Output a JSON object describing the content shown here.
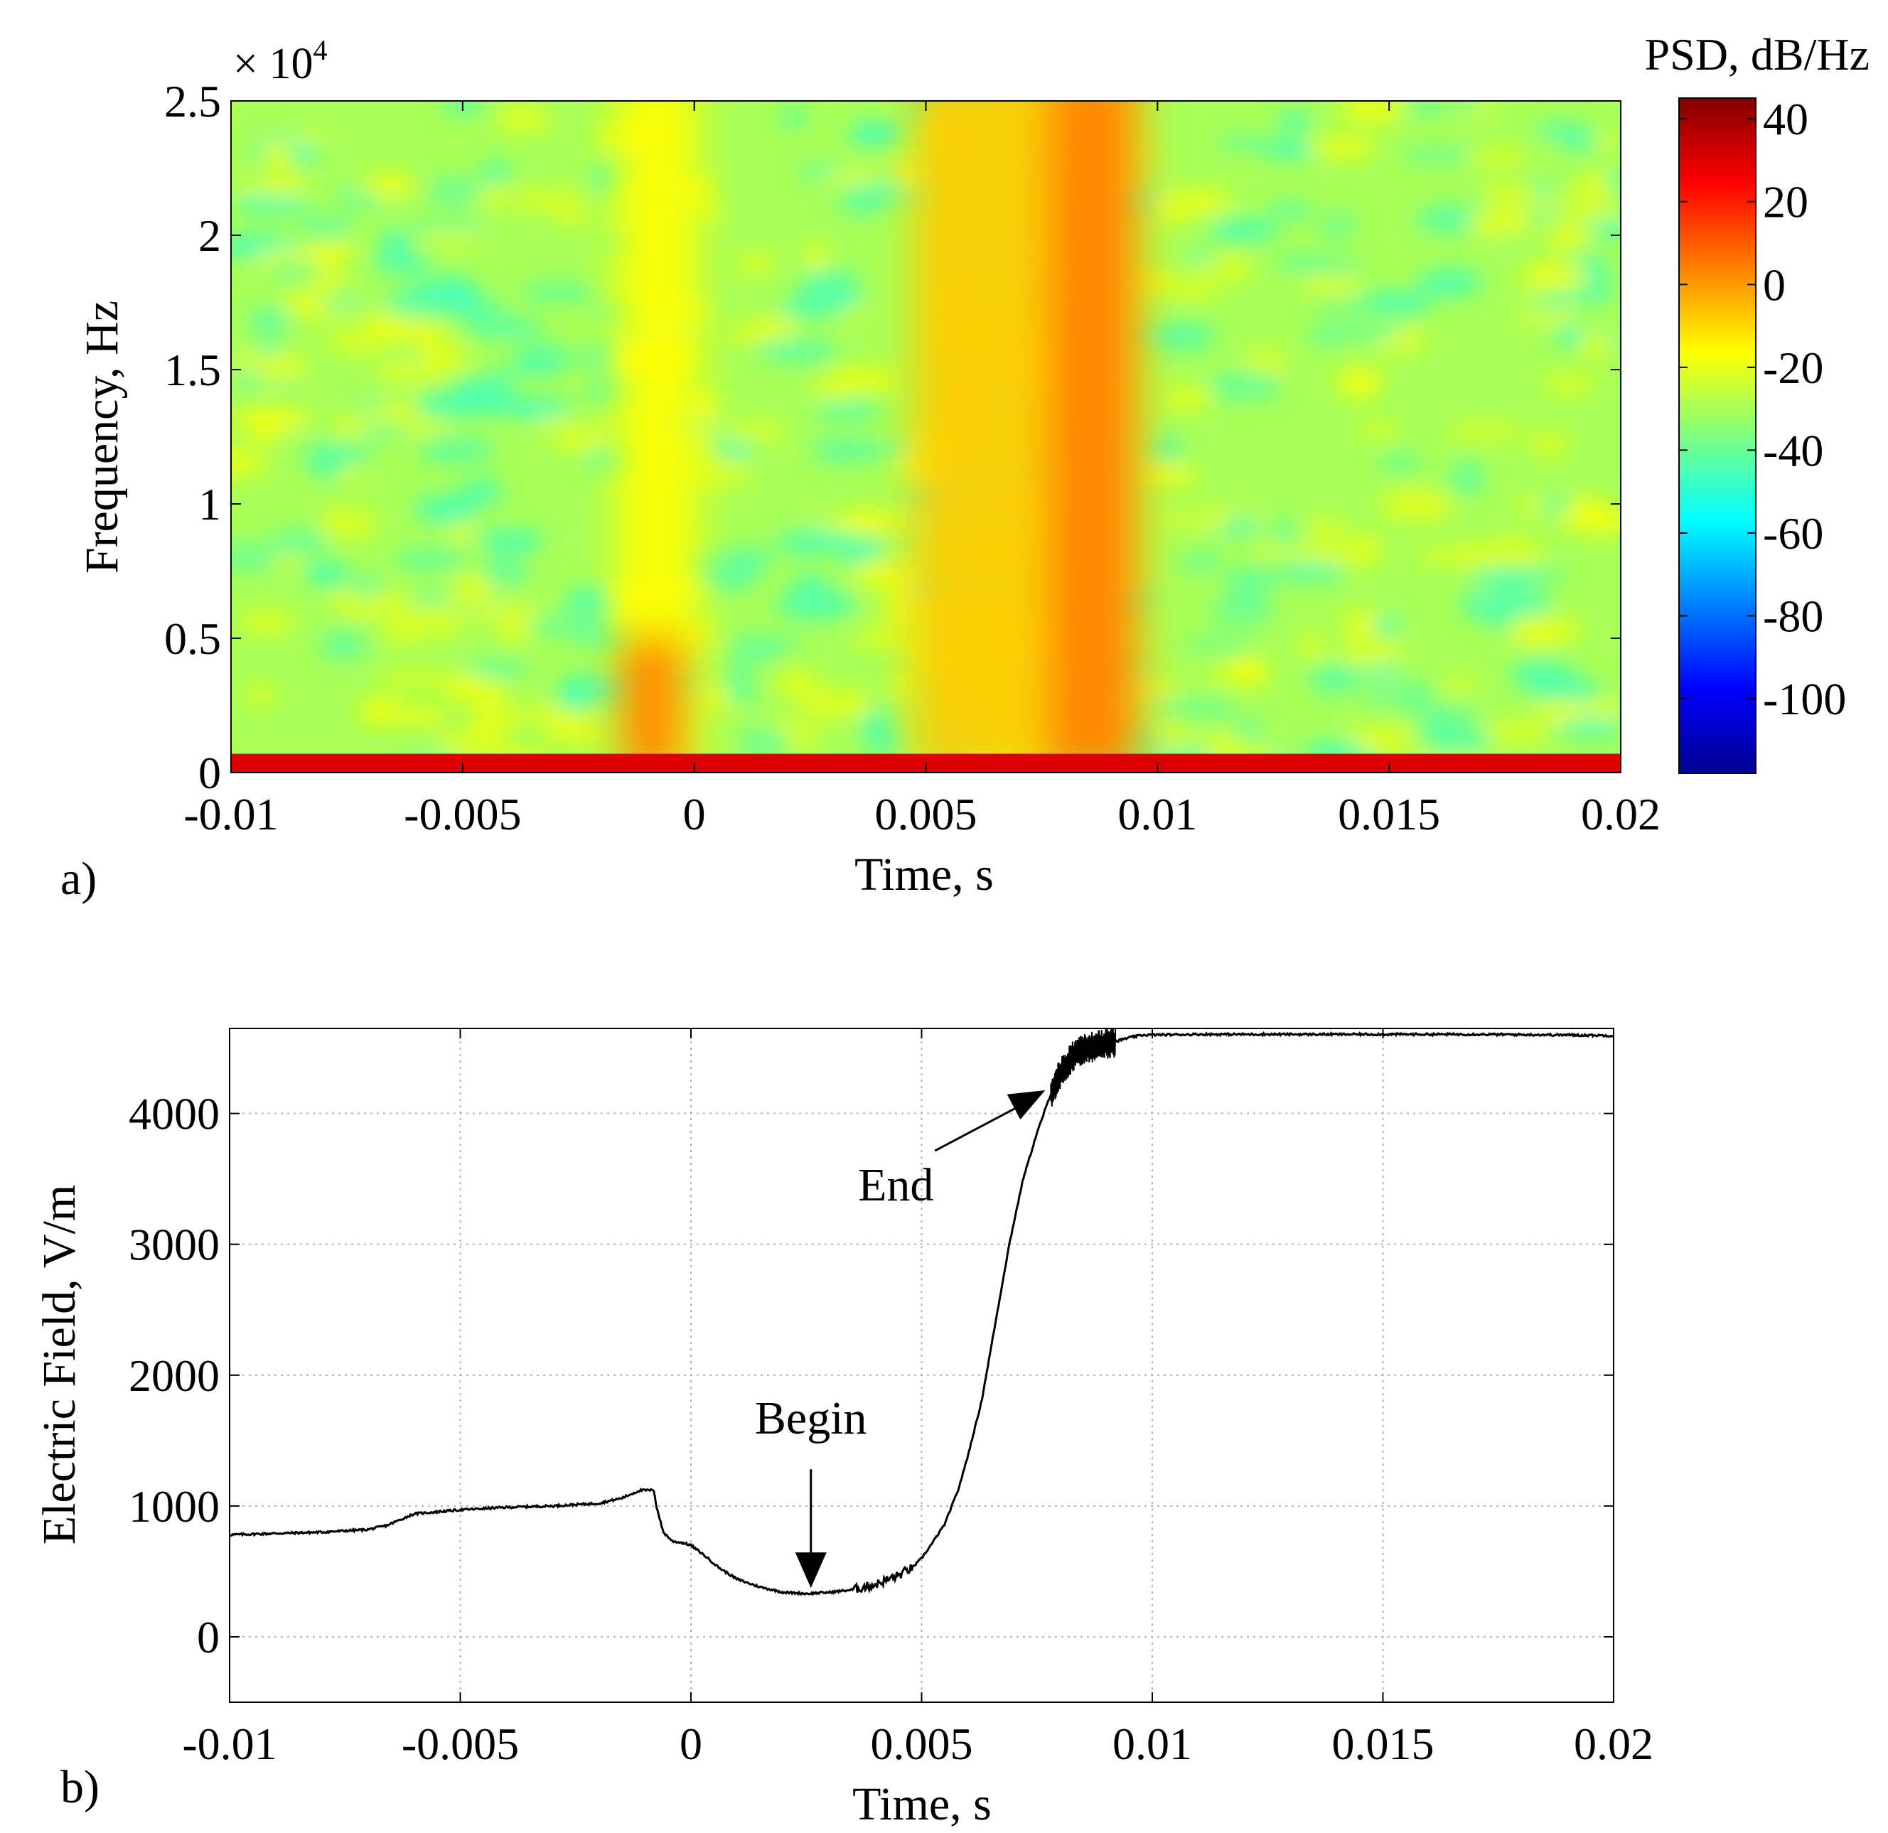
{
  "chart_data": [
    {
      "type": "heatmap",
      "panel_label": "a)",
      "xlabel": "Time, s",
      "ylabel": "Frequency, Hz",
      "y_multiplier": "× 10",
      "y_multiplier_exp": "4",
      "xlim": [
        -0.01,
        0.02
      ],
      "ylim": [
        0,
        25000
      ],
      "x_ticks": [
        -0.01,
        -0.005,
        0,
        0.005,
        0.01,
        0.015,
        0.02
      ],
      "x_tick_labels": [
        "-0.01",
        "-0.005",
        "0",
        "0.005",
        "0.01",
        "0.015",
        "0.02"
      ],
      "y_ticks": [
        0,
        5000,
        10000,
        15000,
        20000,
        25000
      ],
      "y_tick_labels": [
        "0",
        "0.5",
        "1",
        "1.5",
        "2",
        "2.5"
      ],
      "colorbar": {
        "title": "PSD, dB/Hz",
        "range": [
          -118,
          45
        ],
        "ticks": [
          40,
          20,
          0,
          -20,
          -40,
          -60,
          -80,
          -100
        ],
        "tick_labels": [
          "40",
          "20",
          "0",
          "-20",
          "-40",
          "-60",
          "-80",
          "-100"
        ],
        "colormap": "jet"
      },
      "background_level_db": -30,
      "dc_band": {
        "freq_max": 700,
        "level_db": 30
      },
      "bursts": [
        {
          "t_start": -0.0017,
          "t_end": 0.0001,
          "freq_max": 25000,
          "level_db": -16,
          "note": "weak yellow column"
        },
        {
          "t_start": -0.0016,
          "t_end": -0.0002,
          "freq_max": 4000,
          "level_db": 4,
          "note": "low-frequency orange patch"
        },
        {
          "t_start": 0.0047,
          "t_end": 0.0097,
          "freq_max": 25000,
          "level_db": -8,
          "note": "broadband orange emission"
        },
        {
          "t_start": 0.0076,
          "t_end": 0.0095,
          "freq_max": 25000,
          "level_db": 4,
          "note": "strongest orange band"
        }
      ]
    },
    {
      "type": "line",
      "panel_label": "b)",
      "xlabel": "Time, s",
      "ylabel": "Electric Field, V/m",
      "xlim": [
        -0.01,
        0.02
      ],
      "ylim": [
        -500,
        4650
      ],
      "grid": true,
      "x_ticks": [
        -0.01,
        -0.005,
        0,
        0.005,
        0.01,
        0.015,
        0.02
      ],
      "x_tick_labels": [
        "-0.01",
        "-0.005",
        "0",
        "0.005",
        "0.01",
        "0.015",
        "0.02"
      ],
      "y_ticks": [
        0,
        1000,
        2000,
        3000,
        4000
      ],
      "y_tick_labels": [
        "0",
        "1000",
        "2000",
        "3000",
        "4000"
      ],
      "series": [
        {
          "name": "Electric field",
          "x": [
            -0.01,
            -0.009,
            -0.008,
            -0.007,
            -0.0066,
            -0.006,
            -0.005,
            -0.004,
            -0.003,
            -0.002,
            -0.0015,
            -0.0011,
            -0.0008,
            -0.00075,
            -0.0006,
            -0.0004,
            -0.0002,
            0,
            0.0003,
            0.0006,
            0.001,
            0.0015,
            0.002,
            0.0025,
            0.003,
            0.0035,
            0.004,
            0.0045,
            0.0048,
            0.005,
            0.0052,
            0.0055,
            0.0058,
            0.006,
            0.0063,
            0.0066,
            0.0069,
            0.0072,
            0.0075,
            0.0078,
            0.008,
            0.0083,
            0.0086,
            0.009,
            0.0095,
            0.0098,
            0.011,
            0.013,
            0.015,
            0.017,
            0.019,
            0.02
          ],
          "y": [
            780,
            790,
            800,
            820,
            850,
            940,
            970,
            990,
            1000,
            1020,
            1060,
            1120,
            1120,
            1000,
            800,
            730,
            720,
            700,
            620,
            530,
            440,
            380,
            340,
            330,
            340,
            360,
            400,
            470,
            530,
            600,
            700,
            860,
            1130,
            1380,
            1800,
            2400,
            3000,
            3500,
            3850,
            4150,
            4300,
            4450,
            4500,
            4530,
            4580,
            4600,
            4605,
            4605,
            4605,
            4605,
            4600,
            4595
          ]
        }
      ],
      "annotations": [
        {
          "text": "Begin",
          "x": 0.0026,
          "y": 330,
          "arrow": "down"
        },
        {
          "text": "End",
          "x": 0.0074,
          "y": 4150,
          "arrow": "up-right"
        }
      ]
    }
  ]
}
